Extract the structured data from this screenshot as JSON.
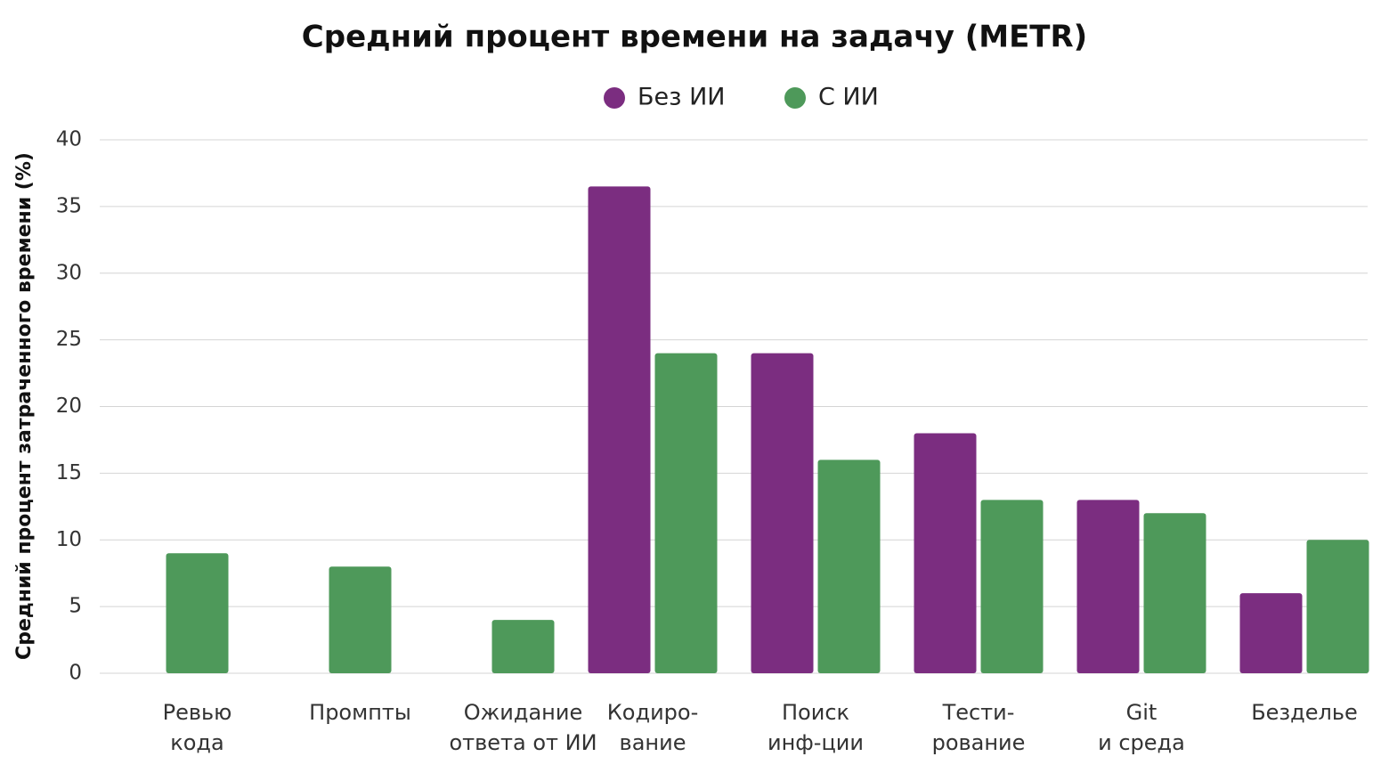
{
  "chart_data": {
    "type": "bar",
    "title": "Средний процент времени на задачу (METR)",
    "y_label": "Средний процент затраченного времени (%)",
    "categories": [
      [
        "Ревью",
        "кода"
      ],
      [
        "Промпты"
      ],
      [
        "Ожидание",
        "ответа от ИИ"
      ],
      [
        "Кодиро-",
        "вание"
      ],
      [
        "Поиск",
        "инф-ции"
      ],
      [
        "Тести-",
        "рование"
      ],
      [
        "Git",
        "и среда"
      ],
      [
        "Безделье"
      ]
    ],
    "series": [
      {
        "name": "Без  ИИ",
        "color": "#7b2d80",
        "values": [
          null,
          null,
          null,
          36.5,
          24,
          18,
          13,
          6
        ]
      },
      {
        "name": "С  ИИ",
        "color": "#4e995a",
        "values": [
          9,
          8,
          4,
          24,
          16,
          13,
          12,
          10
        ]
      }
    ],
    "ylim": [
      0,
      40
    ],
    "yticks": [
      0,
      5,
      10,
      15,
      20,
      25,
      30,
      35,
      40
    ],
    "grid": true,
    "legend": "top"
  }
}
